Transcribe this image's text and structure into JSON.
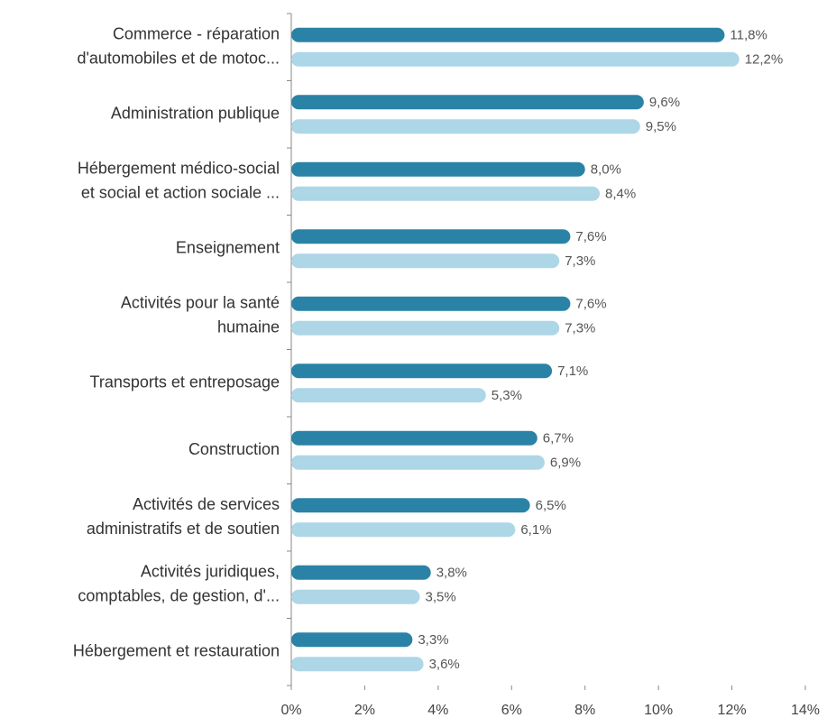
{
  "chart_data": {
    "type": "bar",
    "orientation": "horizontal",
    "categories": [
      [
        "Commerce -  réparation",
        "d'automobiles et de motoc..."
      ],
      [
        "Administration publique"
      ],
      [
        "Hébergement médico-social",
        "et social et action sociale ..."
      ],
      [
        "Enseignement"
      ],
      [
        "Activités pour la santé",
        "humaine"
      ],
      [
        "Transports et entreposage"
      ],
      [
        "Construction"
      ],
      [
        "Activités de services",
        "administratifs et de soutien"
      ],
      [
        "Activités juridiques,",
        "comptables, de gestion, d'..."
      ],
      [
        "Hébergement et restauration"
      ]
    ],
    "series": [
      {
        "color": "#2a83a6",
        "values": [
          11.8,
          9.6,
          8.0,
          7.6,
          7.6,
          7.1,
          6.7,
          6.5,
          3.8,
          3.3
        ],
        "value_labels": [
          "11,8%",
          "9,6%",
          "8,0%",
          "7,6%",
          "7,6%",
          "7,1%",
          "6,7%",
          "6,5%",
          "3,8%",
          "3,3%"
        ]
      },
      {
        "color": "#add6e7",
        "values": [
          12.2,
          9.5,
          8.4,
          7.3,
          7.3,
          5.3,
          6.9,
          6.1,
          3.5,
          3.6
        ],
        "value_labels": [
          "12,2%",
          "9,5%",
          "8,4%",
          "7,3%",
          "7,3%",
          "5,3%",
          "6,9%",
          "6,1%",
          "3,5%",
          "3,6%"
        ]
      }
    ],
    "xlim": [
      0,
      14
    ],
    "xticks": [
      {
        "value": 0,
        "label": "0%"
      },
      {
        "value": 2,
        "label": "2%"
      },
      {
        "value": 4,
        "label": "4%"
      },
      {
        "value": 6,
        "label": "6%"
      },
      {
        "value": 8,
        "label": "8%"
      },
      {
        "value": 10,
        "label": "10%"
      },
      {
        "value": 12,
        "label": "12%"
      },
      {
        "value": 14,
        "label": "14%"
      }
    ],
    "grid": false
  }
}
